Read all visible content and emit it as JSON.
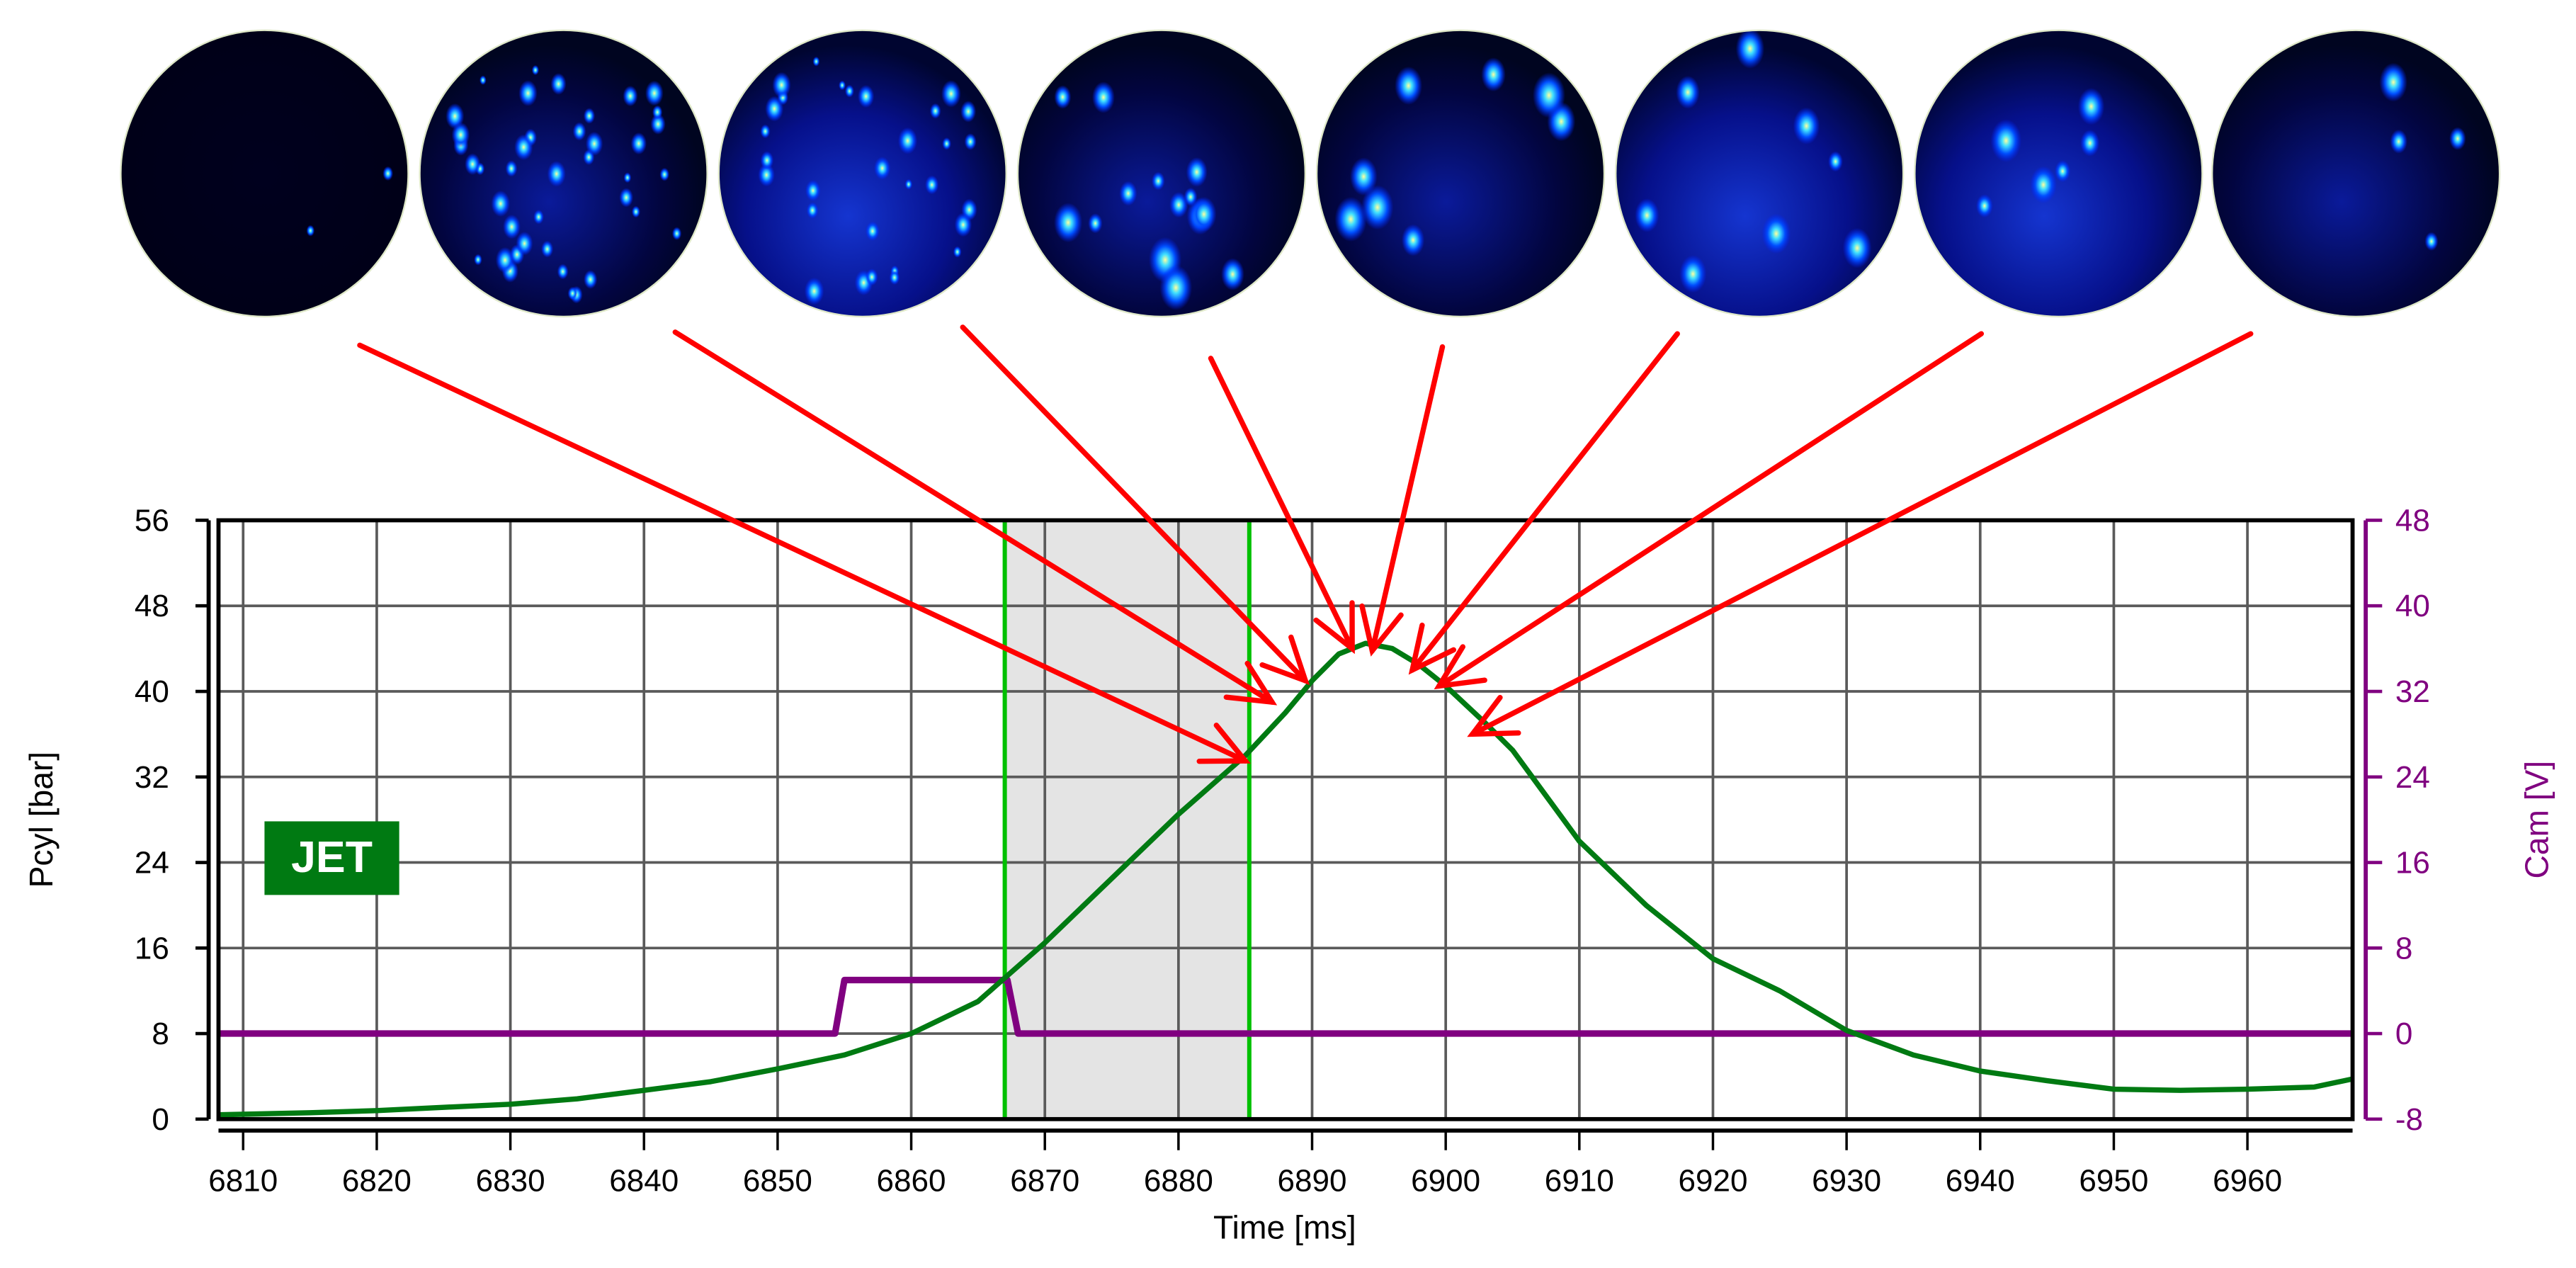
{
  "chart_data": {
    "type": "line",
    "title": "",
    "annotation_label": "JET",
    "xlabel": "Time [ms]",
    "ylabel": "Pcyl [bar]",
    "ylabel_right": "Cam [V]",
    "xlim": [
      6808,
      6968
    ],
    "ylim": [
      0,
      56
    ],
    "ylim_right": [
      -8,
      48
    ],
    "x_ticks": [
      6810,
      6820,
      6830,
      6840,
      6850,
      6860,
      6870,
      6880,
      6890,
      6900,
      6910,
      6920,
      6930,
      6940,
      6950,
      6960
    ],
    "y_ticks": [
      0,
      8,
      16,
      24,
      32,
      40,
      48,
      56
    ],
    "y_ticks_right": [
      -8,
      0,
      8,
      16,
      24,
      32,
      40,
      48
    ],
    "grid": true,
    "shaded_region": {
      "x_start": 6867,
      "x_end": 6885.3,
      "color": "#e4e4e4"
    },
    "vertical_markers": [
      {
        "x": 6867,
        "color": "#00c000"
      },
      {
        "x": 6885.3,
        "color": "#00c000"
      }
    ],
    "series": [
      {
        "name": "Pcyl",
        "axis": "left",
        "color": "#007a12",
        "x": [
          6808,
          6815,
          6820,
          6825,
          6830,
          6835,
          6840,
          6845,
          6850,
          6855,
          6860,
          6865,
          6867,
          6870,
          6875,
          6880,
          6885,
          6888,
          6890,
          6892,
          6894,
          6896,
          6898,
          6900,
          6903,
          6905,
          6910,
          6915,
          6920,
          6925,
          6930,
          6935,
          6940,
          6945,
          6950,
          6955,
          6960,
          6965,
          6968
        ],
        "values": [
          0.4,
          0.6,
          0.8,
          1.1,
          1.4,
          1.9,
          2.7,
          3.5,
          4.7,
          6.0,
          8.0,
          11.0,
          13.2,
          16.5,
          22.5,
          28.5,
          34.0,
          38.0,
          41.0,
          43.5,
          44.5,
          44.0,
          42.5,
          40.5,
          37.0,
          34.5,
          26.0,
          20.0,
          15.0,
          12.0,
          8.3,
          6.0,
          4.5,
          3.6,
          2.8,
          2.7,
          2.8,
          3.0,
          3.8
        ]
      },
      {
        "name": "Cam",
        "axis": "right",
        "color": "#800080",
        "x": [
          6808,
          6854.3,
          6855,
          6867.2,
          6868,
          6968
        ],
        "values": [
          0,
          0,
          5,
          5,
          0,
          0
        ]
      }
    ],
    "arrows": [
      {
        "from_image": 1,
        "target_x": 6885,
        "target_y": 33.5
      },
      {
        "from_image": 2,
        "target_x": 6887,
        "target_y": 39.0
      },
      {
        "from_image": 3,
        "target_x": 6889.5,
        "target_y": 41.0
      },
      {
        "from_image": 4,
        "target_x": 6893,
        "target_y": 44.0
      },
      {
        "from_image": 5,
        "target_x": 6894.5,
        "target_y": 43.8
      },
      {
        "from_image": 6,
        "target_x": 6897.5,
        "target_y": 42.0
      },
      {
        "from_image": 7,
        "target_x": 6899.5,
        "target_y": 40.5
      },
      {
        "from_image": 8,
        "target_x": 6902,
        "target_y": 36.0
      }
    ]
  },
  "images": {
    "count": 8,
    "description": "Circular camera frames of luminous jet combustion spots, blue colormap",
    "frames": [
      {
        "index": 1,
        "brightness": "very dark, single faint spot"
      },
      {
        "index": 2,
        "brightness": "many small spots"
      },
      {
        "index": 3,
        "brightness": "many bright spots"
      },
      {
        "index": 4,
        "brightness": "moderate spots with streaks"
      },
      {
        "index": 5,
        "brightness": "few bright spots"
      },
      {
        "index": 6,
        "brightness": "few bright spots with glow"
      },
      {
        "index": 7,
        "brightness": "few bright spots"
      },
      {
        "index": 8,
        "brightness": "two bright spots"
      }
    ]
  },
  "colors": {
    "pcyl": "#007a12",
    "cam": "#800080",
    "marker": "#00c000",
    "arrow": "#ff0000",
    "shade": "#e4e4e4",
    "grid": "#5a5a5a",
    "jet_bg": "#007a12"
  }
}
